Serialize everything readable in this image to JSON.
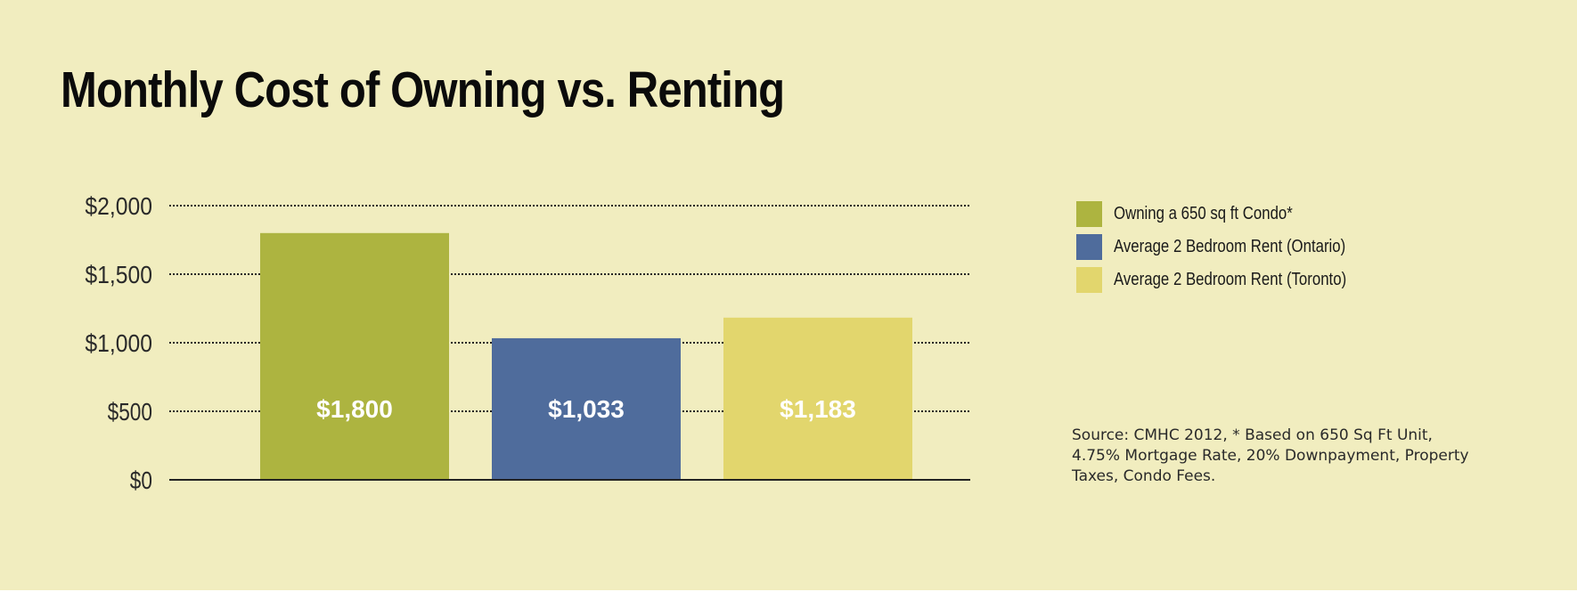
{
  "chart_data": {
    "type": "bar",
    "title": "Monthly Cost of Owning vs. Renting",
    "xlabel": "",
    "ylabel": "",
    "ylim": [
      0,
      2000
    ],
    "yticks": [
      0,
      500,
      1000,
      1500,
      2000
    ],
    "ytick_labels": [
      "$0",
      "$500",
      "$1,000",
      "$1,500",
      "$2,000"
    ],
    "grid": true,
    "legend_position": "right",
    "categories": [
      "Owning a 650 sq ft Condo*",
      "Average 2 Bedroom Rent (Ontario)",
      "Average 2 Bedroom Rent (Toronto)"
    ],
    "values": [
      1800,
      1033,
      1183
    ],
    "value_labels": [
      "$1,800",
      "$1,033",
      "$1,183"
    ],
    "colors": [
      "#adb440",
      "#4f6c9c",
      "#e2d66d"
    ],
    "source_note": "Source: CMHC 2012, * Based on 650 Sq Ft Unit, 4.75% Mortgage Rate, 20% Downpayment, Property Taxes, Condo Fees."
  },
  "theme": {
    "background": "#f1edbf",
    "axis_color": "#222222",
    "gridline_color": "#222222",
    "bar_label_color": "#ffffff"
  }
}
